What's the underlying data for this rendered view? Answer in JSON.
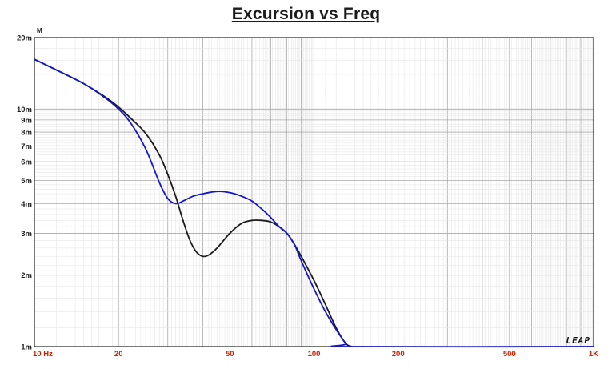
{
  "chart_data": {
    "type": "line",
    "title": "Excursion vs Freq",
    "y_unit": "M",
    "xscale": "log",
    "yscale": "log",
    "xlim": [
      10,
      1000
    ],
    "ylim": [
      0.001,
      0.02
    ],
    "grid": true,
    "brand_mark": "LEAP",
    "x_tick_labels": [
      {
        "value": 10,
        "label": "10 Hz"
      },
      {
        "value": 20,
        "label": "20"
      },
      {
        "value": 50,
        "label": "50"
      },
      {
        "value": 100,
        "label": "100"
      },
      {
        "value": 200,
        "label": "200"
      },
      {
        "value": 500,
        "label": "500"
      },
      {
        "value": 1000,
        "label": "1K"
      }
    ],
    "y_tick_labels": [
      {
        "value": 0.02,
        "label": "20m"
      },
      {
        "value": 0.01,
        "label": "10m"
      },
      {
        "value": 0.009,
        "label": "9m"
      },
      {
        "value": 0.008,
        "label": "8m"
      },
      {
        "value": 0.007,
        "label": "7m"
      },
      {
        "value": 0.006,
        "label": "6m"
      },
      {
        "value": 0.005,
        "label": "5m"
      },
      {
        "value": 0.004,
        "label": "4m"
      },
      {
        "value": 0.003,
        "label": "3m"
      },
      {
        "value": 0.002,
        "label": "2m"
      },
      {
        "value": 0.001,
        "label": "1m"
      }
    ],
    "series": [
      {
        "color": "#1a1a1a",
        "points": [
          [
            10,
            0.0162
          ],
          [
            12,
            0.0146
          ],
          [
            15,
            0.0128
          ],
          [
            18,
            0.0112
          ],
          [
            20,
            0.0102
          ],
          [
            22,
            0.0092
          ],
          [
            25,
            0.0079
          ],
          [
            28,
            0.0064
          ],
          [
            30,
            0.0053
          ],
          [
            32,
            0.0043
          ],
          [
            34,
            0.0034
          ],
          [
            36,
            0.0028
          ],
          [
            38,
            0.0025
          ],
          [
            40,
            0.0024
          ],
          [
            42,
            0.00243
          ],
          [
            45,
            0.0026
          ],
          [
            50,
            0.003
          ],
          [
            55,
            0.0033
          ],
          [
            60,
            0.0034
          ],
          [
            65,
            0.0034
          ],
          [
            70,
            0.00335
          ],
          [
            75,
            0.0032
          ],
          [
            80,
            0.003
          ],
          [
            85,
            0.0027
          ],
          [
            90,
            0.0024
          ],
          [
            100,
            0.0019
          ],
          [
            110,
            0.0015
          ],
          [
            120,
            0.0012
          ],
          [
            130,
            0.00103
          ],
          [
            137,
            0.001
          ]
        ]
      },
      {
        "color": "#1414cc",
        "points": [
          [
            10,
            0.0162
          ],
          [
            12,
            0.0146
          ],
          [
            15,
            0.0128
          ],
          [
            18,
            0.0111
          ],
          [
            20,
            0.01
          ],
          [
            22,
            0.0088
          ],
          [
            25,
            0.0068
          ],
          [
            28,
            0.0049
          ],
          [
            30,
            0.0042
          ],
          [
            32,
            0.004
          ],
          [
            34,
            0.0041
          ],
          [
            37,
            0.0043
          ],
          [
            40,
            0.0044
          ],
          [
            45,
            0.0045
          ],
          [
            50,
            0.00445
          ],
          [
            55,
            0.0043
          ],
          [
            60,
            0.0041
          ],
          [
            65,
            0.0038
          ],
          [
            70,
            0.0035
          ],
          [
            75,
            0.0032
          ],
          [
            80,
            0.003
          ],
          [
            85,
            0.0027
          ],
          [
            90,
            0.0023
          ],
          [
            100,
            0.00175
          ],
          [
            110,
            0.0014
          ],
          [
            120,
            0.00118
          ],
          [
            130,
            0.00103
          ],
          [
            135,
            0.001
          ],
          [
            1000,
            0.001
          ]
        ]
      }
    ]
  }
}
